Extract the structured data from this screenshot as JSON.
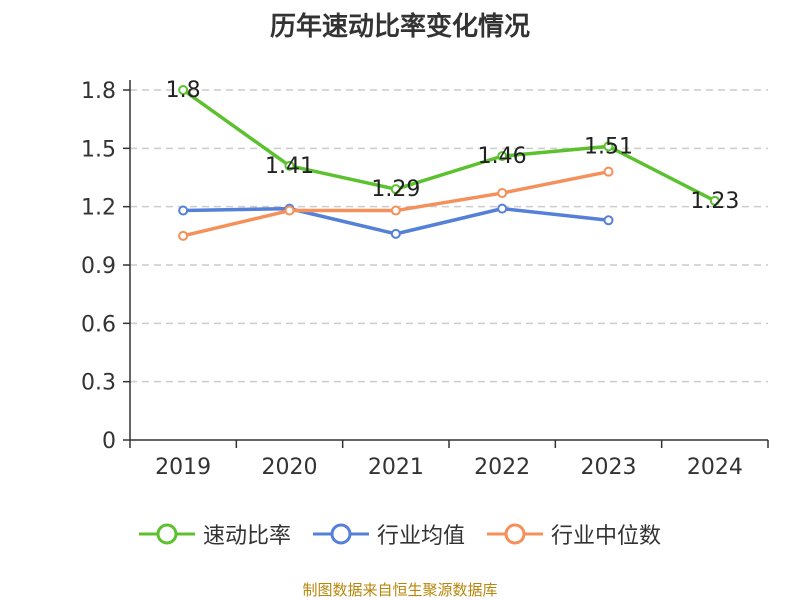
{
  "chart_data": {
    "type": "line",
    "title": "历年速动比率变化情况",
    "categories": [
      "2019",
      "2020",
      "2021",
      "2022",
      "2023",
      "2024"
    ],
    "yticks": [
      "0",
      "0.3",
      "0.6",
      "0.9",
      "1.2",
      "1.5",
      "1.8"
    ],
    "ylim": [
      0,
      1.8
    ],
    "grid": true,
    "legend_position": "bottom",
    "series": [
      {
        "name": "速动比率",
        "color": "#5cc12e",
        "values": [
          1.8,
          1.41,
          1.29,
          1.46,
          1.51,
          1.23
        ],
        "labels": [
          "1.8",
          "1.41",
          "1.29",
          "1.46",
          "1.51",
          "1.23"
        ]
      },
      {
        "name": "行业均值",
        "color": "#5580d8",
        "values": [
          1.18,
          1.19,
          1.06,
          1.19,
          1.13,
          null
        ]
      },
      {
        "name": "行业中位数",
        "color": "#f5905a",
        "values": [
          1.05,
          1.18,
          1.18,
          1.27,
          1.38,
          null
        ]
      }
    ]
  },
  "source": "制图数据来自恒生聚源数据库"
}
